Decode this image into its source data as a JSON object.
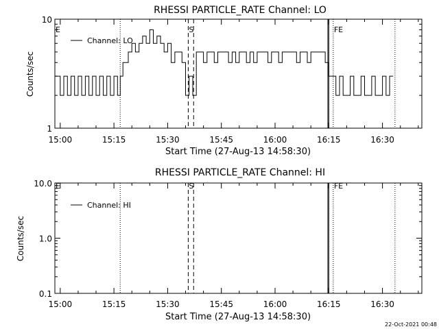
{
  "footer": {
    "timestamp": "22-Oct-2021 00:48"
  },
  "chart_data": [
    {
      "type": "line",
      "title": "RHESSI PARTICLE_RATE Channel: LO",
      "xlabel": "Start Time (27-Aug-13 14:58:30)",
      "ylabel": "Counts/sec",
      "yscale": "log",
      "xlim": [
        "14:58:30",
        "16:41:00"
      ],
      "ylim": [
        1,
        10
      ],
      "x_ticks": [
        "15:00",
        "15:15",
        "15:30",
        "15:45",
        "16:00",
        "16:15",
        "16:30"
      ],
      "y_ticks": [
        "1",
        "10"
      ],
      "legend": {
        "position": "top-left",
        "entries": [
          "Channel: LO"
        ]
      },
      "markers": [
        {
          "label": "E",
          "time": "14:58:30",
          "style": "none"
        },
        {
          "label": "",
          "time": "15:16:45",
          "style": "dotted"
        },
        {
          "label": "S",
          "time": "15:35:45",
          "style": "dashed"
        },
        {
          "label": "",
          "time": "15:37:15",
          "style": "dashed"
        },
        {
          "label": "",
          "time": "16:14:45",
          "style": "solid"
        },
        {
          "label": "",
          "time": "16:15:00",
          "style": "solid"
        },
        {
          "label": "FE",
          "time": "16:16:15",
          "style": "dotted"
        },
        {
          "label": "",
          "time": "16:33:30",
          "style": "dotted"
        }
      ],
      "series": [
        {
          "name": "Channel: LO",
          "segments": [
            {
              "x": [
                "14:58:30",
                "15:00:00",
                "15:01:00",
                "15:02:00",
                "15:03:00",
                "15:04:00",
                "15:05:00",
                "15:06:00",
                "15:07:00",
                "15:08:00",
                "15:09:00",
                "15:10:00",
                "15:11:00",
                "15:12:00",
                "15:13:00",
                "15:14:00",
                "15:15:00",
                "15:16:00",
                "15:16:45",
                "15:17:30",
                "15:18:00",
                "15:19:00",
                "15:20:00",
                "15:21:00",
                "15:22:00",
                "15:23:00",
                "15:24:00",
                "15:25:00",
                "15:26:00",
                "15:27:00",
                "15:28:00",
                "15:29:00",
                "15:30:00",
                "15:31:00",
                "15:32:00",
                "15:33:00",
                "15:34:00",
                "15:35:00",
                "15:36:00",
                "15:37:00",
                "15:38:00",
                "15:39:00",
                "15:40:00",
                "15:41:00",
                "15:42:00",
                "15:43:00",
                "15:44:00",
                "15:45:00",
                "15:46:00",
                "15:47:00",
                "15:48:00",
                "15:49:00",
                "15:50:00",
                "15:51:00",
                "15:52:00",
                "15:53:00",
                "15:54:00",
                "15:55:00",
                "15:56:00",
                "15:57:00",
                "15:58:00",
                "15:59:00",
                "16:00:00",
                "16:01:00",
                "16:02:00",
                "16:03:00",
                "16:04:00",
                "16:05:00",
                "16:06:00",
                "16:07:00",
                "16:08:00",
                "16:09:00",
                "16:10:00",
                "16:11:00",
                "16:12:00",
                "16:13:00",
                "16:14:00",
                "16:15:00",
                "16:16:00",
                "16:17:00",
                "16:18:00",
                "16:19:00",
                "16:20:00",
                "16:21:00",
                "16:22:00",
                "16:23:00",
                "16:24:00",
                "16:25:00",
                "16:26:00",
                "16:27:00",
                "16:28:00",
                "16:29:00",
                "16:30:00",
                "16:31:00",
                "16:32:00"
              ],
              "y": [
                3,
                2,
                3,
                2,
                3,
                2,
                3,
                2,
                3,
                2,
                3,
                2,
                3,
                2,
                3,
                2,
                3,
                2,
                3,
                4,
                4,
                5,
                6,
                5,
                6,
                7,
                6,
                8,
                6,
                7,
                6,
                5,
                6,
                4,
                5,
                5,
                4,
                2,
                3,
                2,
                5,
                5,
                4,
                5,
                5,
                4,
                5,
                5,
                5,
                4,
                5,
                4,
                5,
                5,
                4,
                5,
                4,
                5,
                5,
                5,
                4,
                5,
                5,
                4,
                5,
                5,
                5,
                5,
                4,
                5,
                5,
                4,
                5,
                5,
                5,
                5,
                4,
                3,
                3,
                2,
                3,
                2,
                2,
                3,
                2,
                2,
                3,
                2,
                2,
                3,
                2,
                2,
                3,
                2,
                3
              ]
            }
          ]
        }
      ]
    },
    {
      "type": "line",
      "title": "RHESSI PARTICLE_RATE Channel: HI",
      "xlabel": "Start Time (27-Aug-13 14:58:30)",
      "ylabel": "Counts/sec",
      "yscale": "log",
      "xlim": [
        "14:58:30",
        "16:41:00"
      ],
      "ylim": [
        0.1,
        10
      ],
      "x_ticks": [
        "15:00",
        "15:15",
        "15:30",
        "15:45",
        "16:00",
        "16:15",
        "16:30"
      ],
      "y_ticks": [
        "0.1",
        "1.0",
        "10.0"
      ],
      "legend": {
        "position": "top-left",
        "entries": [
          "Channel: HI"
        ]
      },
      "markers": [
        {
          "label": "E",
          "time": "14:58:30",
          "style": "none"
        },
        {
          "label": "",
          "time": "15:16:45",
          "style": "dotted"
        },
        {
          "label": "S",
          "time": "15:35:45",
          "style": "dashed"
        },
        {
          "label": "",
          "time": "15:37:15",
          "style": "dashed"
        },
        {
          "label": "",
          "time": "16:14:45",
          "style": "solid"
        },
        {
          "label": "",
          "time": "16:15:00",
          "style": "solid"
        },
        {
          "label": "FE",
          "time": "16:16:15",
          "style": "dotted"
        },
        {
          "label": "",
          "time": "16:33:30",
          "style": "dotted"
        }
      ],
      "series": [
        {
          "name": "Channel: HI",
          "segments": []
        }
      ]
    }
  ]
}
